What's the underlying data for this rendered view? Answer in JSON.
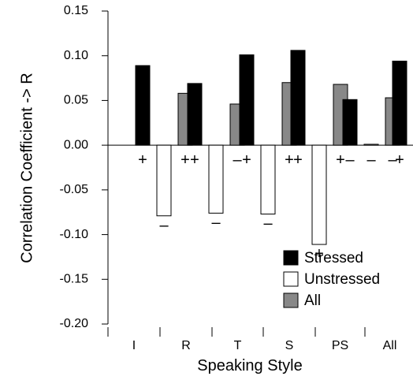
{
  "chart_data": {
    "type": "bar",
    "xlabel": "Speaking Style",
    "ylabel": "Correlation Coefficient -> R",
    "ylim": [
      -0.2,
      0.15
    ],
    "yticks": [
      "0.15",
      "0.10",
      "0.05",
      "0.00",
      "-0.05",
      "-0.10",
      "-0.15",
      "-0.20"
    ],
    "categories": [
      "I",
      "R",
      "T",
      "S",
      "PS",
      "All"
    ],
    "series": [
      {
        "name": "Stressed",
        "color": "#000000",
        "values": [
          0.089,
          0.069,
          0.101,
          0.106,
          0.051,
          0.094
        ]
      },
      {
        "name": "Unstressed",
        "color": "#ffffff",
        "values": [
          -0.079,
          -0.076,
          -0.077,
          -0.111,
          0.001,
          -0.088
        ]
      },
      {
        "name": "All",
        "color": "#888888",
        "values": [
          0.058,
          0.046,
          0.07,
          0.068,
          0.053,
          0.063
        ]
      }
    ],
    "sign_annotations": [
      [
        "+",
        "–",
        "+"
      ],
      [
        "+",
        "–",
        "–"
      ],
      [
        "+",
        "–",
        "+"
      ],
      [
        "+",
        "+",
        "+"
      ],
      [
        "–",
        "–",
        "–"
      ],
      [
        "+",
        "+",
        "+"
      ]
    ],
    "legend_position": "bottom-right",
    "grid": false
  }
}
